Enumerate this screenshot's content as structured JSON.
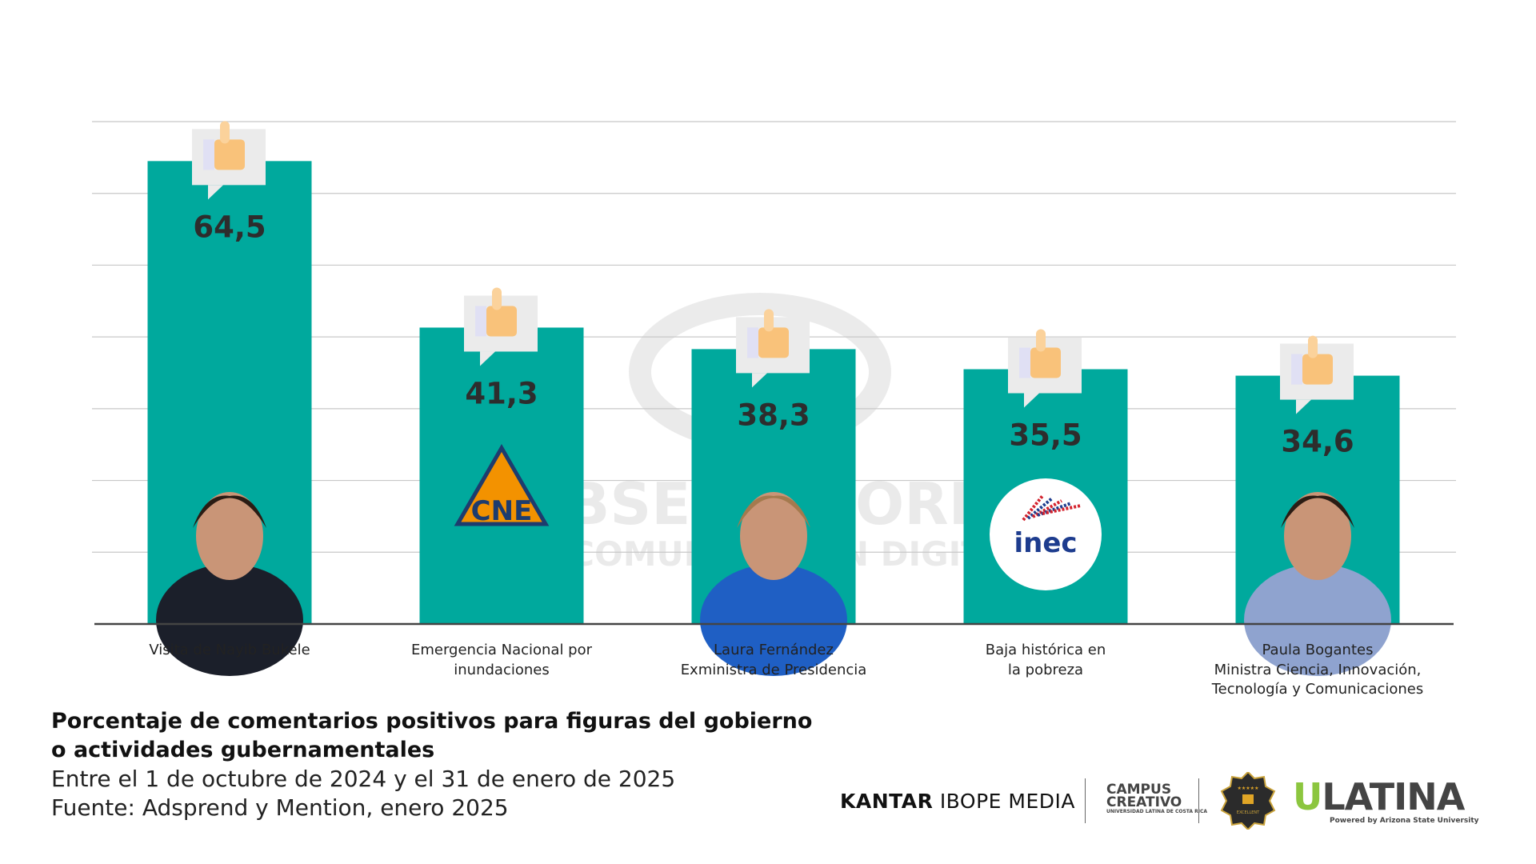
{
  "chart_data": {
    "type": "bar",
    "title": "Porcentaje de comentarios positivos para figuras del gobierno o actividades gubernamentales",
    "title_lines": [
      "Porcentaje de comentarios positivos para figuras del gobierno",
      "o actividades gubernamentales"
    ],
    "subtitle": "Entre el 1 de octubre de 2024 y el 31 de enero de 2025",
    "source": "Fuente: Adsprend y Mention, enero 2025",
    "categories": [
      [
        "Visita de Nayib Bukele"
      ],
      [
        "Emergencia Nacional por",
        "inundaciones"
      ],
      [
        "Laura Fernández",
        "Exministra de Presidencia"
      ],
      [
        "Baja histórica en",
        "la pobreza"
      ],
      [
        "Paula Bogantes",
        "Ministra Ciencia, Innovación,",
        "Tecnología y Comunicaciones"
      ]
    ],
    "values": [
      64.5,
      41.3,
      38.3,
      35.5,
      34.6
    ],
    "value_labels": [
      "64,5",
      "41,3",
      "38,3",
      "35,5",
      "34,6"
    ],
    "bar_images": [
      "photo",
      "cne-logo",
      "photo",
      "inec-logo",
      "photo"
    ],
    "image_text": {
      "cne": "CNE",
      "inec": "inec"
    },
    "ylim": [
      0,
      70
    ],
    "y_grid_step": 10,
    "grid": true,
    "y_tick_labels_shown": false,
    "colors": {
      "bar": "#00a99d",
      "value_label": "#2d2d2d",
      "grid": "#c8c8c8",
      "axis": "#444444",
      "thumb": "#f9c27a"
    }
  },
  "watermark": [
    "OBSERVATORIO",
    "DE COMUNICACIÓN DIGITAL"
  ],
  "logos": {
    "kantar_bold": "KANTAR",
    "kantar_rest": "IBOPE MEDIA",
    "campus_lines": [
      "CAMPUS",
      "CREATIVO"
    ],
    "campus_small": "UNIVERSIDAD LATINA DE COSTA RICA",
    "badge": "QS RATED EXCELLENT",
    "ulatina_u": "U",
    "ulatina_rest": "LATINA",
    "ulatina_small": "Powered by Arizona State University"
  }
}
